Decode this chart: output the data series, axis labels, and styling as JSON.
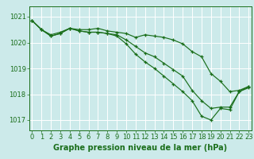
{
  "title": "Graphe pression niveau de la mer (hPa)",
  "bg_color": "#cceaea",
  "grid_color": "#ffffff",
  "line_color": "#1a6e1a",
  "marker": "+",
  "xlim": [
    -0.3,
    23.3
  ],
  "ylim": [
    1016.6,
    1021.4
  ],
  "yticks": [
    1017,
    1018,
    1019,
    1020,
    1021
  ],
  "xticks": [
    0,
    1,
    2,
    3,
    4,
    5,
    6,
    7,
    8,
    9,
    10,
    11,
    12,
    13,
    14,
    15,
    16,
    17,
    18,
    19,
    20,
    21,
    22,
    23
  ],
  "line1": [
    1020.85,
    1020.5,
    1020.3,
    1020.4,
    1020.55,
    1020.5,
    1020.5,
    1020.55,
    1020.45,
    1020.4,
    1020.35,
    1020.2,
    1020.3,
    1020.25,
    1020.2,
    1020.1,
    1019.95,
    1019.65,
    1019.45,
    1018.8,
    1018.5,
    1018.1,
    1018.15,
    1018.3
  ],
  "line2": [
    1020.85,
    1020.5,
    1020.25,
    1020.35,
    1020.55,
    1020.45,
    1020.4,
    1020.4,
    1020.35,
    1020.3,
    1020.1,
    1019.85,
    1019.6,
    1019.45,
    1019.2,
    1018.95,
    1018.7,
    1018.15,
    1017.75,
    1017.45,
    1017.5,
    1017.5,
    1018.1,
    1018.3
  ],
  "line3": [
    1020.85,
    1020.5,
    1020.25,
    1020.35,
    1020.55,
    1020.45,
    1020.4,
    1020.4,
    1020.35,
    1020.25,
    1019.95,
    1019.55,
    1019.25,
    1019.0,
    1018.7,
    1018.4,
    1018.1,
    1017.75,
    1017.15,
    1017.0,
    1017.45,
    1017.4,
    1018.1,
    1018.25
  ],
  "tick_fontsize": 6.0,
  "label_fontsize": 7.0
}
